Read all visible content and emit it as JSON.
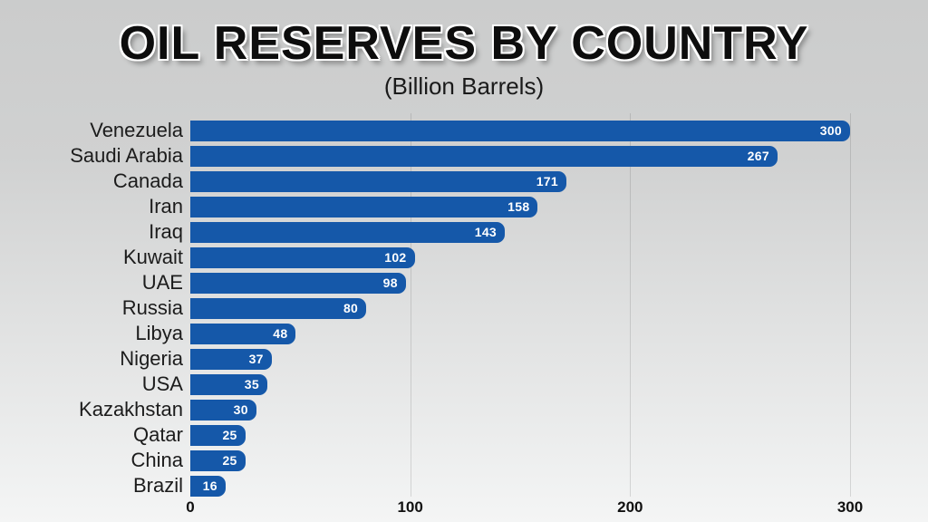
{
  "chart_data": {
    "type": "bar",
    "orientation": "horizontal",
    "title": "OIL RESERVES BY COUNTRY",
    "subtitle": "(Billion Barrels)",
    "categories": [
      "Venezuela",
      "Saudi Arabia",
      "Canada",
      "Iran",
      "Iraq",
      "Kuwait",
      "UAE",
      "Russia",
      "Libya",
      "Nigeria",
      "USA",
      "Kazakhstan",
      "Qatar",
      "China",
      "Brazil"
    ],
    "values": [
      300,
      267,
      171,
      158,
      143,
      102,
      98,
      80,
      48,
      37,
      35,
      30,
      25,
      25,
      16
    ],
    "xlabel": "",
    "ylabel": "",
    "xlim": [
      0,
      300
    ],
    "ticks": [
      0,
      100,
      200,
      300
    ],
    "grid": "vertical-lines-at-ticks",
    "legend": "none",
    "bar_color": "#1558a9",
    "value_label_color": "#ffffff",
    "label_color": "#1c1c1c",
    "background": "gray-to-white vertical gradient"
  }
}
